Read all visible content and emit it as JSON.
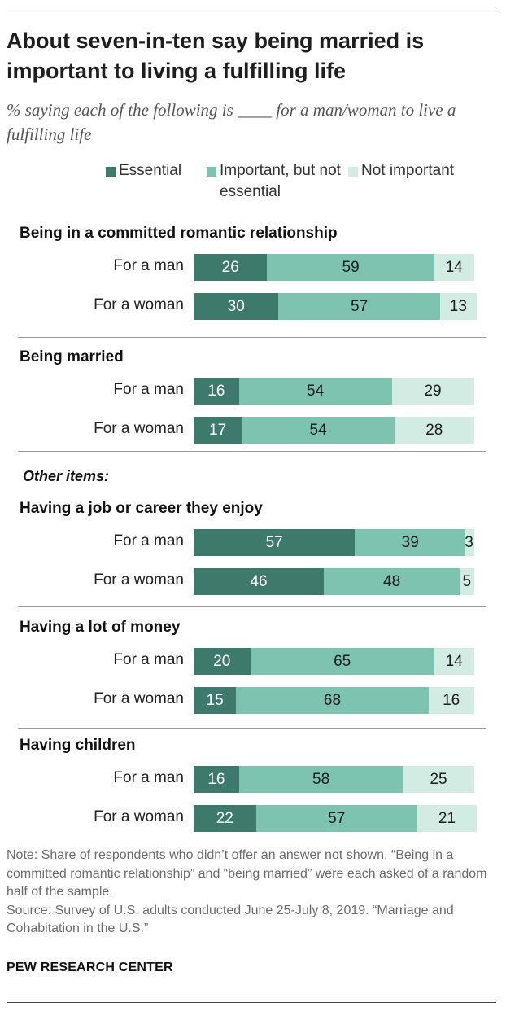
{
  "title": "About seven-in-ten say being married is important to living a fulfilling life",
  "subtitle": "% saying each of the following is ____ for a man/woman to live a fulfilling life",
  "chart_data": {
    "type": "bar",
    "orientation": "horizontal",
    "stacked": true,
    "xlim": [
      0,
      100
    ],
    "legend": [
      {
        "name": "Essential",
        "color": "#3d7a6b"
      },
      {
        "name": "Important, but not essential",
        "color": "#7ec2b0"
      },
      {
        "name": "Not important",
        "color": "#d2ebe3"
      }
    ],
    "other_items_label": "Other items:",
    "groups": [
      {
        "label": "Being in a committed romantic relationship",
        "rows": [
          {
            "label": "For a man",
            "values": [
              26,
              59,
              14
            ]
          },
          {
            "label": "For a woman",
            "values": [
              30,
              57,
              13
            ]
          }
        ]
      },
      {
        "label": "Being married",
        "rows": [
          {
            "label": "For a man",
            "values": [
              16,
              54,
              29
            ]
          },
          {
            "label": "For a woman",
            "values": [
              17,
              54,
              28
            ]
          }
        ]
      },
      {
        "label": "Having a job or career they enjoy",
        "rows": [
          {
            "label": "For a man",
            "values": [
              57,
              39,
              3
            ]
          },
          {
            "label": "For a woman",
            "values": [
              46,
              48,
              5
            ]
          }
        ]
      },
      {
        "label": "Having a lot of money",
        "rows": [
          {
            "label": "For a man",
            "values": [
              20,
              65,
              14
            ]
          },
          {
            "label": "For a woman",
            "values": [
              15,
              68,
              16
            ]
          }
        ]
      },
      {
        "label": "Having children",
        "rows": [
          {
            "label": "For a man",
            "values": [
              16,
              58,
              25
            ]
          },
          {
            "label": "For a woman",
            "values": [
              22,
              57,
              21
            ]
          }
        ]
      }
    ]
  },
  "note": "Note: Share of respondents who didn’t offer an answer not shown. “Being in a committed romantic relationship” and “being married” were each asked of a random half of the sample.",
  "source": "Source: Survey of U.S. adults conducted June 25-July 8, 2019. “Marriage and Cohabitation in the U.S.”",
  "brand": "PEW RESEARCH CENTER"
}
